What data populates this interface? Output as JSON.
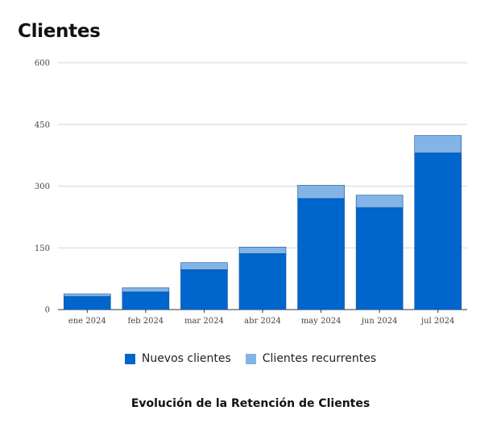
{
  "page": {
    "title": "Clientes"
  },
  "chart_data": {
    "type": "bar",
    "stacked": true,
    "title": "Evolución de la Retención de Clientes",
    "xlabel": "",
    "ylabel": "",
    "categories": [
      "ene 2024",
      "feb 2024",
      "mar 2024",
      "abr 2024",
      "may 2024",
      "jun 2024",
      "jul 2024"
    ],
    "series": [
      {
        "name": "Nuevos clientes",
        "color": "#0066cc",
        "values": [
          32,
          43,
          97,
          136,
          270,
          248,
          381
        ]
      },
      {
        "name": "Clientes recurrentes",
        "color": "#82b4e6",
        "values": [
          6,
          10,
          17,
          16,
          32,
          30,
          42
        ]
      }
    ],
    "ylim": [
      0,
      600
    ],
    "yticks": [
      0,
      150,
      300,
      450,
      600
    ],
    "grid": true,
    "legend_position": "bottom"
  }
}
